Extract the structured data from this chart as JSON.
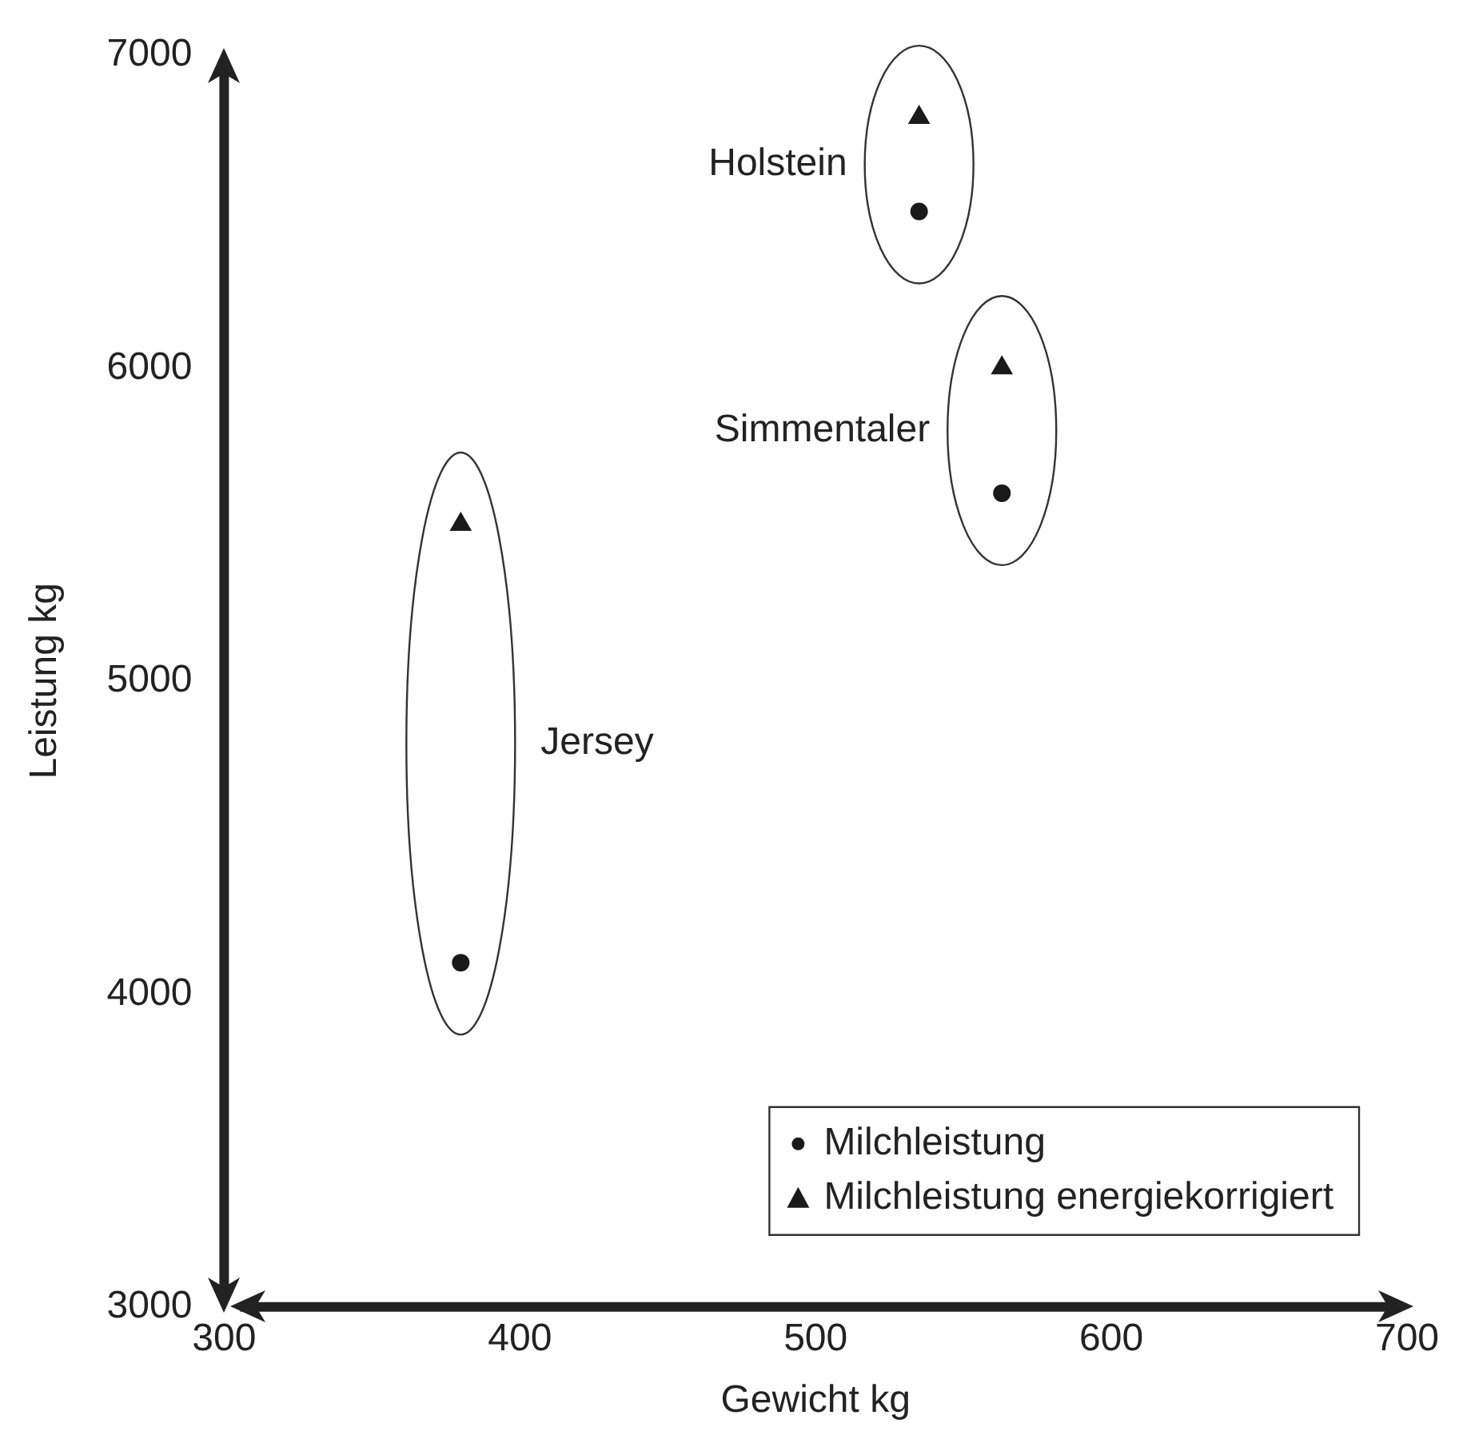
{
  "chart_data": {
    "type": "scatter",
    "xlabel": "Gewicht kg",
    "ylabel": "Leistung kg",
    "xlim": [
      300,
      700
    ],
    "xticks": [
      300,
      400,
      500,
      600,
      700
    ],
    "ylim": [
      3000,
      7000
    ],
    "yticks": [
      3000,
      4000,
      5000,
      6000,
      7000
    ],
    "grid": false,
    "legend": "bottom right",
    "series": [
      {
        "name": "Milchleistung",
        "color": "#1a1a1a",
        "marker": "circle",
        "x": [
          380,
          535,
          563
        ],
        "values": [
          4100,
          6500,
          5600
        ]
      },
      {
        "name": "Milchleistung energiekorrigiert",
        "color": "#1a1a1a",
        "marker": "triangle",
        "x": [
          380,
          535,
          563
        ],
        "values": [
          5500,
          6800,
          6000
        ]
      }
    ],
    "annotations": [
      "Jersey",
      "Holstein",
      "Simmentaler"
    ]
  }
}
